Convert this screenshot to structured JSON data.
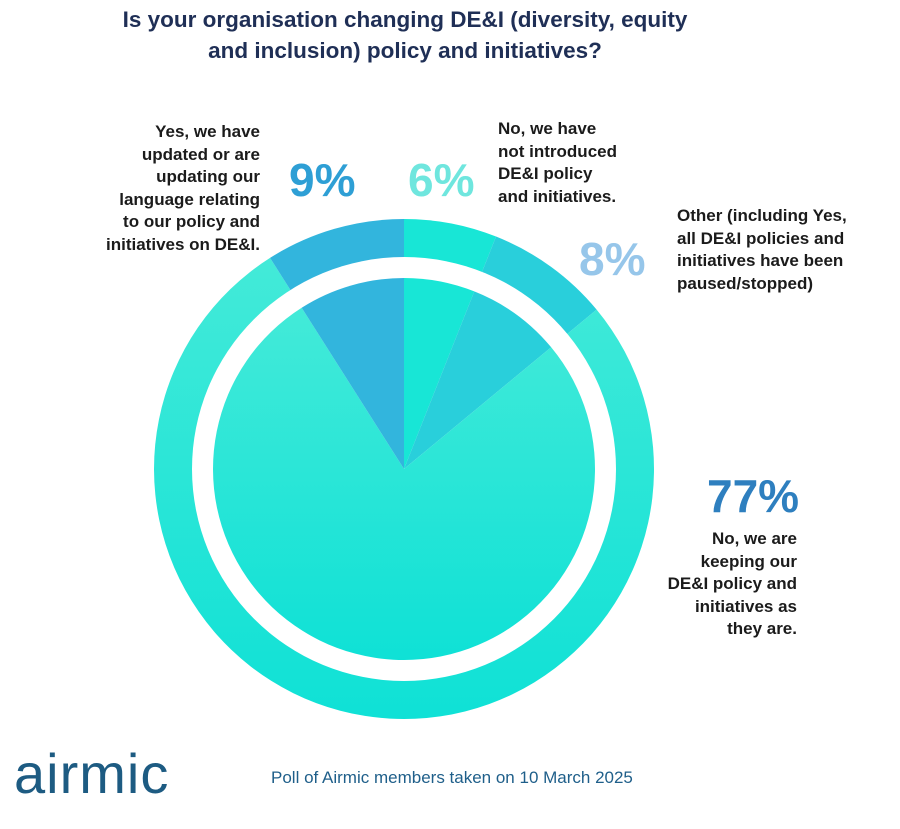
{
  "title": "Is your organisation changing DE&I (diversity, equity\nand inclusion) policy and initiatives?",
  "chart_data": {
    "type": "pie",
    "slices": [
      {
        "label": "No, we have\nnot introduced\nDE&I policy\nand initiatives.",
        "value": 6,
        "display": "6%",
        "color": "#18e6d6",
        "pct_color": "#6fe6de"
      },
      {
        "label": "Other (including Yes,\nall DE&I policies and\ninitiatives have been\npaused/stopped)",
        "value": 8,
        "display": "8%",
        "color": "#29cfdb",
        "pct_color": "#96c6ea"
      },
      {
        "label": "No, we are\nkeeping our\nDE&I policy and\ninitiatives as\nthey are.",
        "value": 77,
        "display": "77%",
        "color": "#14e5d8",
        "pct_color": "#2e7fbf"
      },
      {
        "label": "Yes, we have\nupdated or are\nupdating our\nlanguage relating\nto our policy and\ninitiatives on DE&I.",
        "value": 9,
        "display": "9%",
        "color": "#32b5dd",
        "pct_color": "#2e9fd5"
      }
    ]
  },
  "logo": "airmic",
  "footer": "Poll of Airmic members taken on 10 March 2025"
}
